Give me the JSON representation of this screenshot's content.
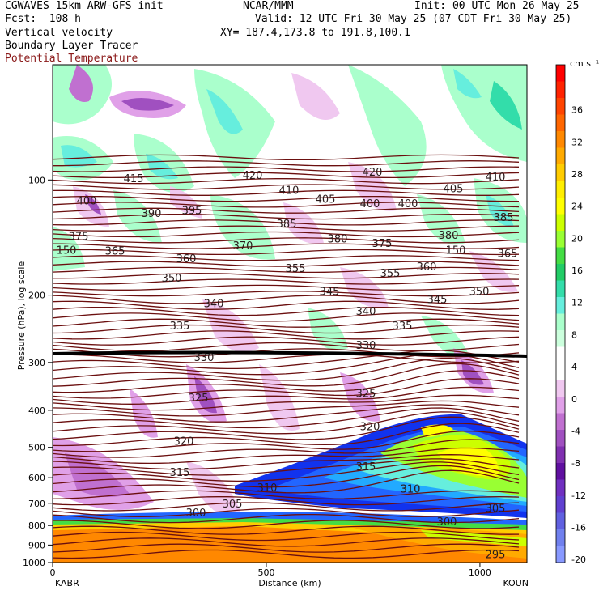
{
  "header": {
    "line1_left": "CGWAVES 15km ARW-GFS init",
    "line1_mid": "NCAR/MMM",
    "line1_right": "Init: 00 UTC Mon 26 May 25",
    "line2_left": "Fcst:  108 h",
    "line2_right": "Valid: 12 UTC Fri 30 May 25 (07 CDT Fri 30 May 25)",
    "line3_left": "Vertical velocity",
    "line3_right": "XY= 187.4,173.8 to 191.8,100.1",
    "line4_left": "Boundary Layer Tracer",
    "line5_left": "Potential Temperature"
  },
  "chart_data": {
    "type": "heatmap",
    "xlabel": "Distance (km)",
    "ylabel": "Pressure (hPa), log scale",
    "xlim": [
      0,
      1110
    ],
    "ylim": [
      1000,
      50
    ],
    "x_ticks": [
      0,
      500,
      1000
    ],
    "y_ticks": [
      100,
      200,
      300,
      400,
      500,
      600,
      700,
      800,
      900,
      1000
    ],
    "left_station": "KABR",
    "right_station": "KOUN",
    "colorbar": {
      "unit": "cm s⁻¹",
      "labels": [
        36,
        32,
        28,
        24,
        20,
        16,
        12,
        8,
        4,
        0,
        -4,
        -8,
        -12,
        -16,
        -20
      ],
      "colors": [
        "#ff0000",
        "#ff2200",
        "#ff4400",
        "#ff6600",
        "#ff8800",
        "#ffaa00",
        "#ffcc00",
        "#ffee00",
        "#ffff00",
        "#ccff00",
        "#99ff33",
        "#44dd44",
        "#22cc66",
        "#33ddaa",
        "#66eedd",
        "#aaffcc",
        "#ccffdd",
        "#ffffff",
        "#ffffff",
        "#f0c8f0",
        "#e0a0e8",
        "#c070d0",
        "#a050c0",
        "#8030b0",
        "#6010a0",
        "#7030c0",
        "#6040d0",
        "#6060e0",
        "#7080ee",
        "#8899ff"
      ]
    },
    "isentropes": [
      {
        "label": "295",
        "p": 950,
        "x": 612
      },
      {
        "label": "300",
        "p": 740,
        "x": 242
      },
      {
        "label": "300",
        "p": 780,
        "x": 552
      },
      {
        "label": "305",
        "p": 700,
        "x": 287
      },
      {
        "label": "305",
        "p": 720,
        "x": 612
      },
      {
        "label": "310",
        "p": 635,
        "x": 330
      },
      {
        "label": "310",
        "p": 640,
        "x": 507
      },
      {
        "label": "315",
        "p": 580,
        "x": 222
      },
      {
        "label": "315",
        "p": 560,
        "x": 452
      },
      {
        "label": "320",
        "p": 480,
        "x": 227
      },
      {
        "label": "320",
        "p": 440,
        "x": 457
      },
      {
        "label": "325",
        "p": 370,
        "x": 245
      },
      {
        "label": "325",
        "p": 360,
        "x": 452
      },
      {
        "label": "330",
        "p": 290,
        "x": 252
      },
      {
        "label": "330",
        "p": 270,
        "x": 452
      },
      {
        "label": "335",
        "p": 240,
        "x": 222
      },
      {
        "label": "335",
        "p": 240,
        "x": 497
      },
      {
        "label": "340",
        "p": 210,
        "x": 264
      },
      {
        "label": "340",
        "p": 220,
        "x": 452
      },
      {
        "label": "345",
        "p": 195,
        "x": 407
      },
      {
        "label": "345",
        "p": 205,
        "x": 540
      },
      {
        "label": "350",
        "p": 180,
        "x": 212
      },
      {
        "label": "350",
        "p": 195,
        "x": 592
      },
      {
        "label": "355",
        "p": 170,
        "x": 365
      },
      {
        "label": "355",
        "p": 175,
        "x": 482
      },
      {
        "label": "360",
        "p": 160,
        "x": 230
      },
      {
        "label": "360",
        "p": 168,
        "x": 527
      },
      {
        "label": "365",
        "p": 153,
        "x": 142
      },
      {
        "label": "365",
        "p": 155,
        "x": 627
      },
      {
        "label": "370",
        "p": 148,
        "x": 300
      },
      {
        "label": "375",
        "p": 140,
        "x": 97
      },
      {
        "label": "375",
        "p": 146,
        "x": 472
      },
      {
        "label": "380",
        "p": 142,
        "x": 417
      },
      {
        "label": "380",
        "p": 139,
        "x": 554
      },
      {
        "label": "385",
        "p": 130,
        "x": 354
      },
      {
        "label": "385",
        "p": 125,
        "x": 622
      },
      {
        "label": "390",
        "p": 122,
        "x": 187
      },
      {
        "label": "395",
        "p": 120,
        "x": 237
      },
      {
        "label": "400",
        "p": 113,
        "x": 107
      },
      {
        "label": "400",
        "p": 115,
        "x": 457
      },
      {
        "label": "400",
        "p": 115,
        "x": 504
      },
      {
        "label": "405",
        "p": 112,
        "x": 402
      },
      {
        "label": "405",
        "p": 105,
        "x": 560
      },
      {
        "label": "410",
        "p": 106,
        "x": 357
      },
      {
        "label": "410",
        "p": 98,
        "x": 612
      },
      {
        "label": "415",
        "p": 99,
        "x": 165
      },
      {
        "label": "420",
        "p": 97,
        "x": 312
      },
      {
        "label": "420",
        "p": 95,
        "x": 460
      },
      {
        "label": "150",
        "p": 152,
        "x": 82
      },
      {
        "label": "150",
        "p": 152,
        "x": 563
      }
    ]
  },
  "icons": {
    "plot_frame": "cross-section-frame"
  }
}
